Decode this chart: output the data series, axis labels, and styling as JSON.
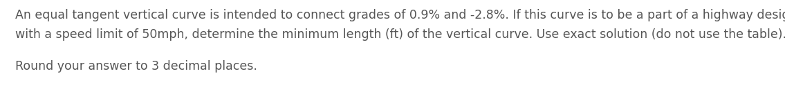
{
  "line1": "An equal tangent vertical curve is intended to connect grades of 0.9% and -2.8%. If this curve is to be a part of a highway designed",
  "line2": "with a speed limit of 50mph, determine the minimum length (ft) of the vertical curve. Use exact solution (do not use the table).",
  "line3": "Round your answer to 3 decimal places.",
  "font_size": 12.5,
  "font_color": "#555555",
  "background_color": "#ffffff",
  "font_family": "DejaVu Sans",
  "fig_width": 11.35,
  "fig_height": 1.39,
  "dpi": 100
}
